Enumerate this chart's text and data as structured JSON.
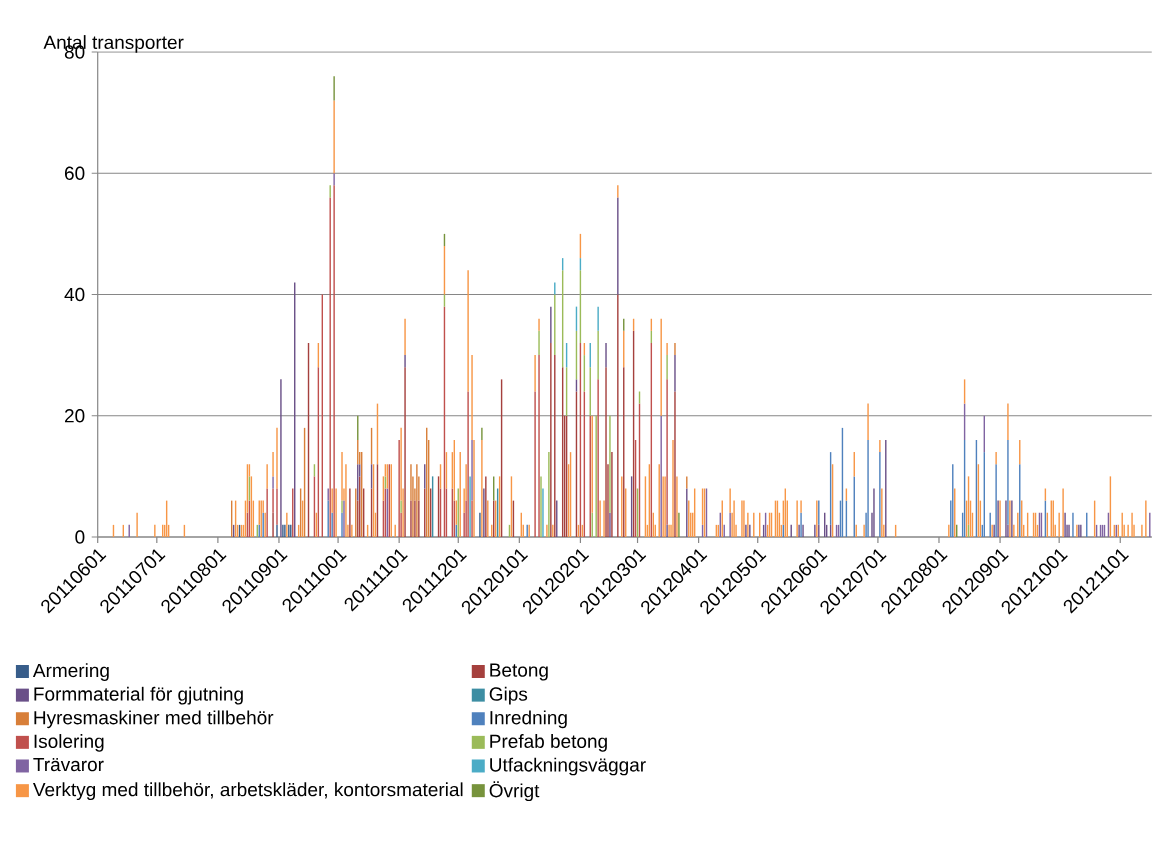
{
  "chart_data": {
    "type": "bar",
    "ylabel": "Antal transporter",
    "xlim": [
      "2011-06-01",
      "2012-11-17"
    ],
    "ylim": [
      0,
      80
    ],
    "yticks": [
      0,
      20,
      40,
      60,
      80
    ],
    "xticks": [
      {
        "value": "2011-06-01",
        "label": "20110601"
      },
      {
        "value": "2011-07-01",
        "label": "20110701"
      },
      {
        "value": "2011-08-01",
        "label": "20110801"
      },
      {
        "value": "2011-09-01",
        "label": "20110901"
      },
      {
        "value": "2011-10-01",
        "label": "20111001"
      },
      {
        "value": "2011-11-01",
        "label": "20111101"
      },
      {
        "value": "2011-12-01",
        "label": "20111201"
      },
      {
        "value": "2012-01-01",
        "label": "20120101"
      },
      {
        "value": "2012-02-01",
        "label": "20120201"
      },
      {
        "value": "2012-03-01",
        "label": "20120301"
      },
      {
        "value": "2012-04-01",
        "label": "20120401"
      },
      {
        "value": "2012-05-01",
        "label": "20120501"
      },
      {
        "value": "2012-06-01",
        "label": "20120601"
      },
      {
        "value": "2012-07-01",
        "label": "20120701"
      },
      {
        "value": "2012-08-01",
        "label": "20120801"
      },
      {
        "value": "2012-09-01",
        "label": "20120901"
      },
      {
        "value": "2012-10-01",
        "label": "20121001"
      },
      {
        "value": "2012-11-01",
        "label": "20121101"
      }
    ],
    "grid": "y",
    "legend": "bottom",
    "series": [
      {
        "name": "Armering",
        "color": "#385d8a",
        "base": [
          0,
          0,
          0,
          0,
          0,
          0,
          0
        ],
        "x": [
          "2011-08-12",
          "2011-08-31",
          "2011-09-03",
          "2011-09-04",
          "2011-09-06",
          "2011-09-07",
          "2011-12-12"
        ],
        "values": [
          2,
          2,
          2,
          2,
          2,
          2,
          4
        ]
      },
      {
        "name": "Betong",
        "color": "#a5403d",
        "base": [
          0,
          0,
          0,
          0,
          0,
          0,
          0,
          0,
          0,
          0,
          0,
          0,
          0,
          0,
          0,
          0,
          0,
          0,
          0,
          0,
          0,
          0,
          0,
          0,
          0,
          0,
          0,
          0,
          0,
          0,
          0,
          0
        ],
        "x": [
          "2011-08-29",
          "2011-09-16",
          "2011-10-07",
          "2011-10-11",
          "2011-10-12",
          "2011-10-14",
          "2011-10-18",
          "2011-10-21",
          "2011-11-04",
          "2011-11-07",
          "2011-11-09",
          "2011-11-11",
          "2011-11-14",
          "2011-11-17",
          "2011-11-21",
          "2011-12-15",
          "2011-12-19",
          "2011-12-23",
          "2011-12-29",
          "2012-01-17",
          "2012-01-19",
          "2012-01-23",
          "2012-01-24",
          "2012-01-25",
          "2012-01-30",
          "2012-02-14",
          "2012-02-15",
          "2012-02-17",
          "2012-02-20",
          "2012-02-23",
          "2012-02-28",
          "2012-03-20"
        ],
        "values": [
          4,
          32,
          8,
          6,
          10,
          8,
          8,
          12,
          28,
          6,
          6,
          6,
          8,
          8,
          10,
          10,
          6,
          26,
          6,
          32,
          30,
          28,
          20,
          20,
          24,
          28,
          12,
          14,
          40,
          28,
          34,
          24
        ]
      },
      {
        "name": "Formmaterial för gjutning",
        "color": "#6a5088",
        "base": [
          0,
          0,
          0,
          6,
          10,
          8,
          28,
          8,
          0,
          32,
          0,
          24,
          28,
          0,
          40,
          0,
          0,
          24,
          0,
          0,
          0,
          0,
          0,
          0,
          0,
          0,
          0,
          0,
          0,
          0,
          0,
          0,
          0,
          0,
          0,
          0,
          0,
          0,
          0,
          0,
          0,
          0,
          0
        ],
        "x": [
          "2011-08-09",
          "2011-09-02",
          "2011-09-09",
          "2011-10-11",
          "2011-10-12",
          "2011-10-18",
          "2011-11-04",
          "2011-11-14",
          "2011-12-14",
          "2012-01-17",
          "2012-01-20",
          "2012-01-30",
          "2012-02-14",
          "2012-02-16",
          "2012-02-20",
          "2012-02-27",
          "2012-03-16",
          "2012-03-20",
          "2012-03-26",
          "2012-04-25",
          "2012-04-27",
          "2012-05-04",
          "2012-05-18",
          "2012-05-22",
          "2012-05-24",
          "2012-05-30",
          "2012-06-01",
          "2012-06-04",
          "2012-06-05",
          "2012-06-07",
          "2012-06-28",
          "2012-06-29",
          "2012-07-05",
          "2012-08-29",
          "2012-08-31",
          "2012-09-04",
          "2012-09-05",
          "2012-09-07",
          "2012-10-04",
          "2012-10-05",
          "2012-10-06",
          "2012-10-11",
          "2012-10-12"
        ],
        "values": [
          2,
          26,
          42,
          6,
          2,
          4,
          2,
          4,
          8,
          6,
          6,
          2,
          4,
          4,
          16,
          10,
          2,
          6,
          8,
          2,
          2,
          2,
          2,
          2,
          2,
          2,
          2,
          4,
          2,
          2,
          4,
          8,
          16,
          2,
          6,
          6,
          2,
          6,
          4,
          2,
          2,
          2,
          2
        ]
      },
      {
        "name": "Gips",
        "color": "#3d8ea3",
        "base": [
          0,
          0
        ],
        "x": [
          "2011-11-18",
          "2011-12-21"
        ],
        "values": [
          10,
          8
        ]
      },
      {
        "name": "Hyresmaskiner med tillbehör",
        "color": "#d87f39",
        "base": [
          0,
          0,
          0,
          0,
          12,
          12,
          0,
          12,
          6,
          0,
          6,
          0,
          6,
          0,
          0,
          30,
          8
        ],
        "x": [
          "2011-08-08",
          "2011-09-12",
          "2011-09-14",
          "2011-10-10",
          "2011-10-11",
          "2011-10-12",
          "2011-10-13",
          "2011-10-18",
          "2011-11-07",
          "2011-11-08",
          "2011-11-09",
          "2011-11-10",
          "2011-11-11",
          "2011-11-15",
          "2011-11-16",
          "2012-03-20",
          "2012-03-26"
        ],
        "values": [
          6,
          8,
          18,
          8,
          4,
          2,
          14,
          6,
          6,
          10,
          2,
          12,
          4,
          18,
          16,
          2,
          2
        ]
      },
      {
        "name": "Inredning",
        "color": "#4f81bd",
        "base": [
          0,
          0,
          0,
          0,
          0,
          0,
          0,
          0,
          0,
          2,
          2,
          0,
          0,
          0,
          0,
          0,
          0,
          0,
          0,
          0,
          0,
          0,
          0,
          0,
          0,
          0,
          0,
          2,
          0,
          0,
          0,
          0
        ],
        "x": [
          "2011-08-22",
          "2011-08-24",
          "2011-09-26",
          "2011-09-28",
          "2011-10-03",
          "2011-11-30",
          "2012-01-05",
          "2012-05-14",
          "2012-05-23",
          "2012-06-01",
          "2012-06-07",
          "2012-06-12",
          "2012-06-13",
          "2012-06-15",
          "2012-06-19",
          "2012-06-25",
          "2012-06-26",
          "2012-07-02",
          "2012-08-07",
          "2012-08-08",
          "2012-08-13",
          "2012-08-14",
          "2012-08-20",
          "2012-08-23",
          "2012-08-24",
          "2012-08-27",
          "2012-08-30",
          "2012-09-05",
          "2012-09-11",
          "2012-09-24",
          "2012-10-08",
          "2012-10-15"
        ],
        "values": [
          2,
          4,
          6,
          4,
          4,
          2,
          2,
          2,
          4,
          4,
          12,
          6,
          18,
          6,
          10,
          4,
          16,
          14,
          6,
          12,
          4,
          16,
          16,
          2,
          14,
          4,
          12,
          14,
          12,
          6,
          4,
          4
        ]
      },
      {
        "name": "Isolering",
        "color": "#c0504d",
        "base": [
          0,
          0,
          0,
          4,
          2,
          0,
          0,
          0,
          0,
          0,
          0,
          0,
          0,
          0,
          0,
          0,
          0,
          0,
          0,
          0,
          0,
          0,
          0,
          0,
          0,
          0,
          0,
          0,
          0,
          0,
          0,
          0,
          0,
          0,
          2
        ],
        "x": [
          "2011-08-16",
          "2011-08-17",
          "2011-08-26",
          "2011-08-29",
          "2011-08-31",
          "2011-09-08",
          "2011-09-19",
          "2011-09-21",
          "2011-09-23",
          "2011-09-27",
          "2011-09-29",
          "2011-10-24",
          "2011-10-25",
          "2011-10-27",
          "2011-11-01",
          "2011-11-02",
          "2011-11-22",
          "2011-11-24",
          "2011-11-25",
          "2011-11-28",
          "2011-11-29",
          "2011-12-04",
          "2011-12-05",
          "2011-12-06",
          "2011-12-08",
          "2012-01-09",
          "2012-01-11",
          "2012-02-01",
          "2012-02-03",
          "2012-02-06",
          "2012-02-10",
          "2012-02-29",
          "2012-03-02",
          "2012-03-08",
          "2012-03-16"
        ],
        "values": [
          4,
          6,
          8,
          4,
          6,
          8,
          10,
          28,
          40,
          56,
          58,
          6,
          8,
          12,
          16,
          4,
          8,
          38,
          8,
          8,
          6,
          4,
          6,
          24,
          6,
          24,
          30,
          32,
          24,
          20,
          26,
          16,
          22,
          32,
          24
        ]
      },
      {
        "name": "Prefab betong",
        "color": "#9bbb59",
        "base": [
          6,
          0,
          10,
          56,
          4,
          8,
          4,
          38,
          0,
          0,
          30,
          0,
          0,
          30,
          28,
          20,
          26,
          32,
          24,
          20,
          0,
          0,
          26,
          4,
          0,
          22,
          32,
          26,
          0
        ],
        "x": [
          "2011-08-17",
          "2011-08-21",
          "2011-09-19",
          "2011-09-27",
          "2011-10-03",
          "2011-10-25",
          "2011-11-02",
          "2011-11-24",
          "2011-12-01",
          "2011-12-27",
          "2012-01-11",
          "2012-01-12",
          "2012-01-16",
          "2012-01-19",
          "2012-01-23",
          "2012-01-25",
          "2012-01-30",
          "2012-02-01",
          "2012-02-03",
          "2012-02-06",
          "2012-02-07",
          "2012-02-09",
          "2012-02-10",
          "2012-02-16",
          "2012-03-01",
          "2012-03-02",
          "2012-03-08",
          "2012-03-16",
          "2012-08-16"
        ],
        "values": [
          4,
          2,
          2,
          2,
          2,
          2,
          2,
          2,
          8,
          2,
          4,
          10,
          14,
          10,
          16,
          8,
          8,
          12,
          6,
          8,
          4,
          20,
          8,
          16,
          8,
          2,
          2,
          4,
          2
        ]
      },
      {
        "name": "Trävaror",
        "color": "#8064a2",
        "base": [
          0,
          8,
          6,
          58,
          0,
          0,
          6,
          0,
          0,
          0,
          0,
          0,
          0,
          0,
          0,
          0,
          16,
          14,
          0,
          0,
          0,
          0,
          0,
          0,
          0,
          0,
          0
        ],
        "x": [
          "2011-06-17",
          "2011-08-29",
          "2011-09-26",
          "2011-09-29",
          "2011-10-04",
          "2011-10-26",
          "2011-12-08",
          "2012-03-13",
          "2012-04-03",
          "2012-04-05",
          "2012-04-12",
          "2012-04-14",
          "2012-04-17",
          "2012-05-05",
          "2012-06-10",
          "2012-06-11",
          "2012-08-14",
          "2012-08-24",
          "2012-09-21",
          "2012-09-22",
          "2012-10-20",
          "2012-10-22",
          "2012-10-23",
          "2012-10-24",
          "2012-10-26",
          "2012-10-30",
          "2012-11-16"
        ],
        "values": [
          2,
          2,
          2,
          2,
          6,
          8,
          10,
          20,
          2,
          8,
          4,
          2,
          4,
          4,
          2,
          2,
          6,
          6,
          4,
          4,
          2,
          2,
          2,
          2,
          4,
          2,
          4
        ]
      },
      {
        "name": "Utfackningsväggar",
        "color": "#4bacc6",
        "base": [
          0,
          0,
          40,
          44,
          28,
          34,
          44,
          28,
          34
        ],
        "x": [
          "2011-12-07",
          "2012-01-13",
          "2012-01-19",
          "2012-01-23",
          "2012-01-25",
          "2012-01-30",
          "2012-02-01",
          "2012-02-06",
          "2012-02-10"
        ],
        "values": [
          10,
          8,
          2,
          2,
          4,
          4,
          2,
          4,
          4
        ]
      },
      {
        "name": "Verktyg med tillbehör, arbetskläder, kontorsmaterial",
        "color": "#f79646",
        "base": [
          0,
          0,
          0,
          0,
          0,
          0,
          0,
          0,
          0,
          0,
          0,
          0,
          0,
          0,
          4,
          10,
          0,
          0,
          2,
          0,
          4,
          0,
          8,
          10,
          8,
          0,
          0,
          0,
          0,
          28,
          4,
          60,
          0,
          6,
          6,
          0,
          0,
          0,
          0,
          0,
          0,
          12,
          6,
          10,
          8,
          0,
          0,
          6,
          0,
          30,
          8,
          40,
          8,
          8,
          6,
          2,
          0,
          4,
          6,
          24,
          16,
          0,
          0,
          0,
          0,
          0,
          0,
          0,
          0,
          0,
          0,
          24,
          34,
          0,
          0,
          0,
          0,
          0,
          46,
          0,
          30,
          4,
          0,
          0,
          56,
          0,
          28,
          0,
          34,
          0,
          0,
          0,
          34,
          0,
          0,
          0,
          20,
          0,
          0,
          30,
          0,
          0,
          0,
          0,
          0,
          0,
          0,
          0,
          2,
          0,
          0,
          0,
          0,
          4,
          0,
          0,
          0,
          0,
          0,
          0,
          0,
          0,
          0,
          0,
          0,
          0,
          0,
          0,
          0,
          2,
          0,
          0,
          0,
          4,
          0,
          0,
          6,
          10,
          0,
          0,
          16,
          14,
          0,
          0,
          0,
          0,
          0,
          22,
          0,
          2,
          0,
          0,
          0,
          0,
          0,
          12,
          0,
          16,
          0,
          0,
          0,
          12,
          0,
          0,
          0,
          0,
          0,
          0,
          6,
          0,
          0,
          0,
          0,
          0,
          0,
          0,
          0,
          0,
          0,
          0,
          0,
          0,
          0,
          0,
          0,
          0,
          0
        ],
        "x": [
          "2011-06-09",
          "2011-06-14",
          "2011-06-21",
          "2011-06-30",
          "2011-07-04",
          "2011-07-05",
          "2011-07-06",
          "2011-07-07",
          "2011-07-15",
          "2011-08-10",
          "2011-08-11",
          "2011-08-13",
          "2011-08-14",
          "2011-08-15",
          "2011-08-16",
          "2011-08-17",
          "2011-08-18",
          "2011-08-19",
          "2011-08-22",
          "2011-08-23",
          "2011-08-24",
          "2011-08-25",
          "2011-08-26",
          "2011-08-29",
          "2011-08-31",
          "2011-09-05",
          "2011-09-11",
          "2011-09-13",
          "2011-09-20",
          "2011-09-21",
          "2011-09-28",
          "2011-09-29",
          "2011-09-30",
          "2011-10-03",
          "2011-10-04",
          "2011-10-05",
          "2011-10-06",
          "2011-10-08",
          "2011-10-16",
          "2011-10-19",
          "2011-10-20",
          "2011-10-21",
          "2011-10-24",
          "2011-10-25",
          "2011-10-26",
          "2011-10-28",
          "2011-10-30",
          "2011-11-02",
          "2011-11-03",
          "2011-11-04",
          "2011-11-22",
          "2011-11-24",
          "2011-11-25",
          "2011-11-28",
          "2011-11-29",
          "2011-11-30",
          "2011-12-02",
          "2011-12-04",
          "2011-12-05",
          "2011-12-06",
          "2011-12-08",
          "2011-12-09",
          "2011-12-13",
          "2011-12-16",
          "2011-12-18",
          "2011-12-20",
          "2011-12-22",
          "2011-12-28",
          "2012-01-02",
          "2012-01-03",
          "2012-01-06",
          "2012-01-09",
          "2012-01-11",
          "2012-01-15",
          "2012-01-18",
          "2012-01-26",
          "2012-01-27",
          "2012-01-31",
          "2012-02-01",
          "2012-02-02",
          "2012-02-03",
          "2012-02-07",
          "2012-02-11",
          "2012-02-13",
          "2012-02-20",
          "2012-02-22",
          "2012-02-23",
          "2012-02-24",
          "2012-02-28",
          "2012-03-05",
          "2012-03-06",
          "2012-03-07",
          "2012-03-08",
          "2012-03-09",
          "2012-03-10",
          "2012-03-12",
          "2012-03-13",
          "2012-03-14",
          "2012-03-15",
          "2012-03-16",
          "2012-03-17",
          "2012-03-18",
          "2012-03-19",
          "2012-03-21",
          "2012-03-27",
          "2012-03-28",
          "2012-03-29",
          "2012-03-30",
          "2012-04-03",
          "2012-04-04",
          "2012-04-10",
          "2012-04-11",
          "2012-04-13",
          "2012-04-17",
          "2012-04-18",
          "2012-04-19",
          "2012-04-20",
          "2012-04-23",
          "2012-04-24",
          "2012-04-26",
          "2012-04-29",
          "2012-05-02",
          "2012-05-06",
          "2012-05-07",
          "2012-05-08",
          "2012-05-10",
          "2012-05-11",
          "2012-05-12",
          "2012-05-13",
          "2012-05-14",
          "2012-05-15",
          "2012-05-16",
          "2012-05-21",
          "2012-05-23",
          "2012-05-31",
          "2012-06-08",
          "2012-06-15",
          "2012-06-19",
          "2012-06-20",
          "2012-06-24",
          "2012-06-26",
          "2012-07-02",
          "2012-07-03",
          "2012-07-04",
          "2012-07-10",
          "2012-08-06",
          "2012-08-09",
          "2012-08-14",
          "2012-08-15",
          "2012-08-16",
          "2012-08-17",
          "2012-08-18",
          "2012-08-21",
          "2012-08-22",
          "2012-08-28",
          "2012-08-30",
          "2012-09-01",
          "2012-09-05",
          "2012-09-06",
          "2012-09-08",
          "2012-09-10",
          "2012-09-11",
          "2012-09-12",
          "2012-09-13",
          "2012-09-15",
          "2012-09-18",
          "2012-09-19",
          "2012-09-20",
          "2012-09-24",
          "2012-09-25",
          "2012-09-27",
          "2012-09-28",
          "2012-09-29",
          "2012-10-01",
          "2012-10-03",
          "2012-10-10",
          "2012-10-19",
          "2012-10-27",
          "2012-10-29",
          "2012-10-31",
          "2012-11-02",
          "2012-11-03",
          "2012-11-05",
          "2012-11-07",
          "2012-11-08",
          "2012-11-12",
          "2012-11-14"
        ],
        "values": [
          2,
          2,
          4,
          2,
          2,
          2,
          6,
          2,
          2,
          6,
          2,
          2,
          2,
          6,
          8,
          2,
          10,
          6,
          4,
          6,
          2,
          4,
          4,
          4,
          10,
          4,
          2,
          6,
          4,
          4,
          4,
          12,
          8,
          8,
          2,
          12,
          2,
          2,
          2,
          12,
          4,
          10,
          4,
          2,
          4,
          12,
          2,
          12,
          8,
          6,
          4,
          8,
          6,
          6,
          10,
          4,
          14,
          4,
          6,
          20,
          14,
          16,
          16,
          6,
          2,
          6,
          10,
          10,
          4,
          2,
          2,
          6,
          2,
          2,
          2,
          12,
          14,
          2,
          4,
          2,
          2,
          16,
          6,
          6,
          2,
          10,
          6,
          8,
          2,
          10,
          2,
          12,
          2,
          4,
          2,
          12,
          16,
          10,
          10,
          2,
          2,
          2,
          16,
          10,
          6,
          4,
          4,
          8,
          6,
          8,
          2,
          2,
          6,
          4,
          4,
          6,
          2,
          6,
          6,
          4,
          4,
          4,
          2,
          4,
          4,
          6,
          6,
          4,
          2,
          4,
          8,
          6,
          6,
          2,
          6,
          12,
          2,
          4,
          2,
          2,
          6,
          2,
          8,
          2,
          2,
          2,
          8,
          4,
          6,
          8,
          6,
          4,
          12,
          6,
          2,
          2,
          6,
          6,
          6,
          2,
          4,
          4,
          6,
          2,
          4,
          4,
          4,
          2,
          2,
          4,
          6,
          6,
          2,
          4,
          8,
          2,
          6,
          10,
          2,
          2,
          4,
          2,
          2,
          4,
          2,
          2,
          6
        ]
      },
      {
        "name": "Övrigt",
        "color": "#77933c",
        "base": [
          72,
          16,
          48,
          16,
          6,
          34,
          0,
          0
        ],
        "x": [
          "2011-09-29",
          "2011-10-11",
          "2011-11-24",
          "2011-12-13",
          "2011-12-19",
          "2012-02-23",
          "2012-03-22",
          "2012-08-10"
        ],
        "values": [
          4,
          4,
          2,
          2,
          4,
          2,
          4,
          2
        ]
      }
    ]
  }
}
